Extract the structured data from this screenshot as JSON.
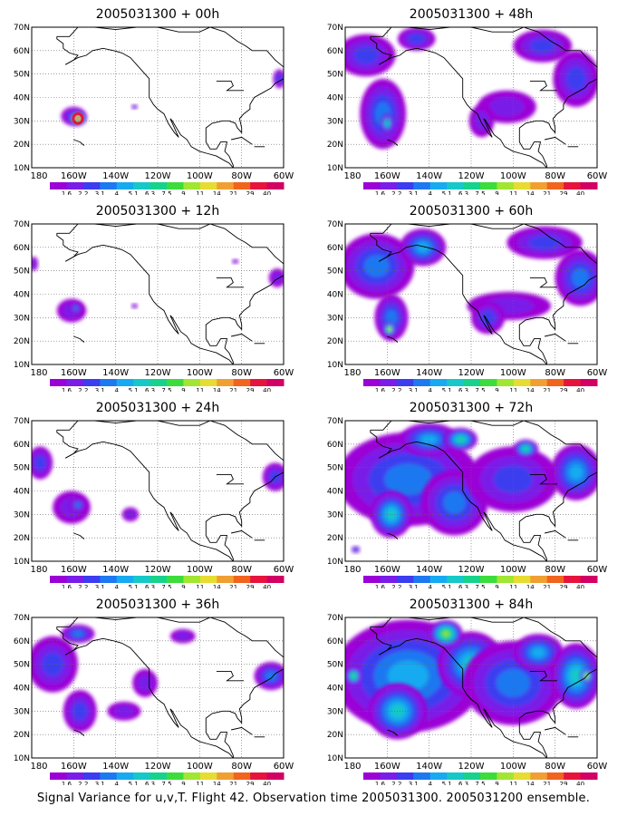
{
  "figure": {
    "caption": "Signal Variance for u,v,T. Flight 42. Observation time 2005031300. 2005031200 ensemble."
  },
  "colorbar": {
    "labels": [
      "1.6",
      "2.2",
      "3.1",
      "4",
      "5.1",
      "6.3",
      "7.5",
      "9",
      "11",
      "14",
      "21",
      "29",
      "40"
    ],
    "colors": [
      "#9b00d6",
      "#7a1de8",
      "#3c3cf0",
      "#1e78f0",
      "#18aaf0",
      "#16c8c8",
      "#17d28c",
      "#3cdc3c",
      "#a0e632",
      "#e6dc32",
      "#f0a032",
      "#f0641e",
      "#e6143c",
      "#d20064"
    ]
  },
  "axes": {
    "x_ticks": [
      "180",
      "160W",
      "140W",
      "120W",
      "100W",
      "80W",
      "60W"
    ],
    "y_ticks": [
      "10N",
      "20N",
      "30N",
      "40N",
      "50N",
      "60N",
      "70N"
    ]
  },
  "chart_data": [
    {
      "type": "heatmap",
      "title": "2005031300 + 00h",
      "x_range": [
        "180",
        "60W"
      ],
      "y_range": [
        "10N",
        "70N"
      ],
      "blobs": [
        {
          "lon": -160,
          "lat": 32,
          "rx": 6,
          "ry": 4,
          "level": 2
        },
        {
          "lon": -158,
          "lat": 31,
          "rx": 4,
          "ry": 3,
          "level": 13
        },
        {
          "lon": -131,
          "lat": 36,
          "rx": 1.5,
          "ry": 1,
          "level": 2
        },
        {
          "lon": -62,
          "lat": 48,
          "rx": 3,
          "ry": 4,
          "level": 2
        }
      ]
    },
    {
      "type": "heatmap",
      "title": "2005031300 + 12h",
      "x_range": [
        "180",
        "60W"
      ],
      "y_range": [
        "10N",
        "70N"
      ],
      "blobs": [
        {
          "lon": -161,
          "lat": 33,
          "rx": 7,
          "ry": 5,
          "level": 1
        },
        {
          "lon": -159,
          "lat": 34,
          "rx": 3,
          "ry": 2.5,
          "level": 3
        },
        {
          "lon": -131,
          "lat": 35,
          "rx": 1.5,
          "ry": 1,
          "level": 1
        },
        {
          "lon": -179,
          "lat": 53,
          "rx": 2,
          "ry": 3,
          "level": 1
        },
        {
          "lon": -63,
          "lat": 47,
          "rx": 4,
          "ry": 4,
          "level": 1
        },
        {
          "lon": -83,
          "lat": 54,
          "rx": 1.5,
          "ry": 1,
          "level": 1
        }
      ]
    },
    {
      "type": "heatmap",
      "title": "2005031300 + 24h",
      "x_range": [
        "180",
        "60W"
      ],
      "y_range": [
        "10N",
        "70N"
      ],
      "blobs": [
        {
          "lon": -176,
          "lat": 52,
          "rx": 6,
          "ry": 7,
          "level": 2
        },
        {
          "lon": -161,
          "lat": 33,
          "rx": 9,
          "ry": 7,
          "level": 1
        },
        {
          "lon": -158,
          "lat": 34,
          "rx": 4,
          "ry": 3,
          "level": 3
        },
        {
          "lon": -133,
          "lat": 30,
          "rx": 4,
          "ry": 3,
          "level": 1
        },
        {
          "lon": -64,
          "lat": 46,
          "rx": 6,
          "ry": 6,
          "level": 2
        }
      ]
    },
    {
      "type": "heatmap",
      "title": "2005031300 + 36h",
      "x_range": [
        "180",
        "60W"
      ],
      "y_range": [
        "10N",
        "70N"
      ],
      "blobs": [
        {
          "lon": -170,
          "lat": 50,
          "rx": 12,
          "ry": 12,
          "level": 2
        },
        {
          "lon": -157,
          "lat": 30,
          "rx": 8,
          "ry": 9,
          "level": 2
        },
        {
          "lon": -158,
          "lat": 63,
          "rx": 8,
          "ry": 4,
          "level": 3
        },
        {
          "lon": -136,
          "lat": 30,
          "rx": 8,
          "ry": 4,
          "level": 1
        },
        {
          "lon": -126,
          "lat": 42,
          "rx": 6,
          "ry": 6,
          "level": 1
        },
        {
          "lon": -66,
          "lat": 45,
          "rx": 8,
          "ry": 6,
          "level": 3
        },
        {
          "lon": -108,
          "lat": 62,
          "rx": 6,
          "ry": 3,
          "level": 1
        }
      ]
    },
    {
      "type": "heatmap",
      "title": "2005031300 + 48h",
      "x_range": [
        "180",
        "60W"
      ],
      "y_range": [
        "10N",
        "70N"
      ],
      "blobs": [
        {
          "lon": -170,
          "lat": 58,
          "rx": 14,
          "ry": 9,
          "level": 2
        },
        {
          "lon": -162,
          "lat": 33,
          "rx": 11,
          "ry": 15,
          "level": 3
        },
        {
          "lon": -160,
          "lat": 29,
          "rx": 3,
          "ry": 4,
          "level": 6
        },
        {
          "lon": -146,
          "lat": 65,
          "rx": 9,
          "ry": 5,
          "level": 2
        },
        {
          "lon": -103,
          "lat": 36,
          "rx": 14,
          "ry": 7,
          "level": 1
        },
        {
          "lon": -115,
          "lat": 30,
          "rx": 6,
          "ry": 7,
          "level": 1
        },
        {
          "lon": -86,
          "lat": 62,
          "rx": 14,
          "ry": 7,
          "level": 2
        },
        {
          "lon": -70,
          "lat": 48,
          "rx": 11,
          "ry": 12,
          "level": 2
        }
      ]
    },
    {
      "type": "heatmap",
      "title": "2005031300 + 60h",
      "x_range": [
        "180",
        "60W"
      ],
      "y_range": [
        "10N",
        "70N"
      ],
      "blobs": [
        {
          "lon": -165,
          "lat": 52,
          "rx": 18,
          "ry": 14,
          "level": 3
        },
        {
          "lon": -158,
          "lat": 30,
          "rx": 8,
          "ry": 10,
          "level": 3
        },
        {
          "lon": -159,
          "lat": 25,
          "rx": 3,
          "ry": 3,
          "level": 9
        },
        {
          "lon": -143,
          "lat": 60,
          "rx": 11,
          "ry": 8,
          "level": 4
        },
        {
          "lon": -102,
          "lat": 35,
          "rx": 20,
          "ry": 6,
          "level": 1
        },
        {
          "lon": -112,
          "lat": 30,
          "rx": 8,
          "ry": 7,
          "level": 2
        },
        {
          "lon": -85,
          "lat": 62,
          "rx": 18,
          "ry": 7,
          "level": 2
        },
        {
          "lon": -68,
          "lat": 47,
          "rx": 12,
          "ry": 12,
          "level": 3
        }
      ]
    },
    {
      "type": "heatmap",
      "title": "2005031300 + 72h",
      "x_range": [
        "180",
        "60W"
      ],
      "y_range": [
        "10N",
        "70N"
      ],
      "blobs": [
        {
          "lon": -150,
          "lat": 45,
          "rx": 34,
          "ry": 20,
          "level": 3
        },
        {
          "lon": -158,
          "lat": 30,
          "rx": 10,
          "ry": 10,
          "level": 5
        },
        {
          "lon": -128,
          "lat": 35,
          "rx": 16,
          "ry": 14,
          "level": 3
        },
        {
          "lon": -140,
          "lat": 62,
          "rx": 14,
          "ry": 7,
          "level": 4
        },
        {
          "lon": -125,
          "lat": 62,
          "rx": 8,
          "ry": 5,
          "level": 6
        },
        {
          "lon": -100,
          "lat": 45,
          "rx": 22,
          "ry": 14,
          "level": 2
        },
        {
          "lon": -94,
          "lat": 58,
          "rx": 6,
          "ry": 4,
          "level": 6
        },
        {
          "lon": -70,
          "lat": 48,
          "rx": 12,
          "ry": 12,
          "level": 4
        },
        {
          "lon": -175,
          "lat": 15,
          "rx": 2,
          "ry": 1.5,
          "level": 3
        }
      ]
    },
    {
      "type": "heatmap",
      "title": "2005031300 + 84h",
      "x_range": [
        "180",
        "60W"
      ],
      "y_range": [
        "10N",
        "70N"
      ],
      "blobs": [
        {
          "lon": -150,
          "lat": 45,
          "rx": 36,
          "ry": 24,
          "level": 4
        },
        {
          "lon": -155,
          "lat": 30,
          "rx": 14,
          "ry": 12,
          "level": 5
        },
        {
          "lon": -120,
          "lat": 50,
          "rx": 16,
          "ry": 14,
          "level": 5
        },
        {
          "lon": -132,
          "lat": 63,
          "rx": 8,
          "ry": 6,
          "level": 8
        },
        {
          "lon": -100,
          "lat": 42,
          "rx": 24,
          "ry": 18,
          "level": 3
        },
        {
          "lon": -88,
          "lat": 55,
          "rx": 12,
          "ry": 8,
          "level": 4
        },
        {
          "lon": -70,
          "lat": 45,
          "rx": 12,
          "ry": 14,
          "level": 5
        },
        {
          "lon": -65,
          "lat": 45,
          "rx": 3,
          "ry": 3,
          "level": 9
        },
        {
          "lon": -176,
          "lat": 45,
          "rx": 4,
          "ry": 4,
          "level": 7
        }
      ]
    }
  ]
}
